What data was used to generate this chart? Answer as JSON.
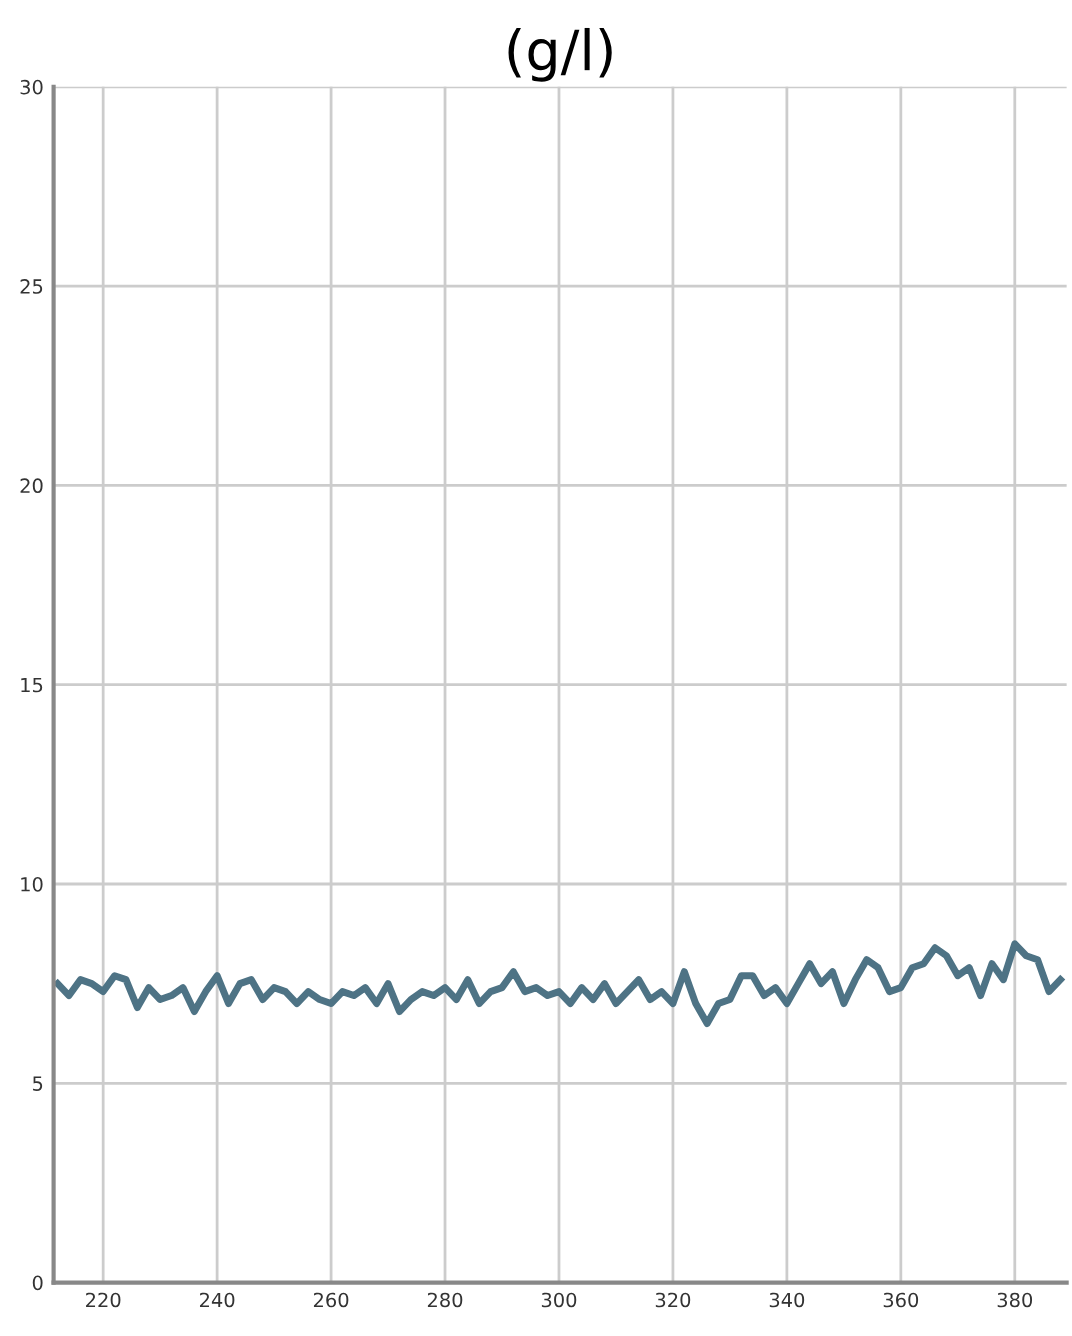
{
  "chart_data": {
    "type": "line",
    "title": "(g/l)",
    "x": [
      212,
      214,
      216,
      218,
      220,
      222,
      224,
      226,
      228,
      230,
      232,
      234,
      236,
      238,
      240,
      242,
      244,
      246,
      248,
      250,
      252,
      254,
      256,
      258,
      260,
      262,
      264,
      266,
      268,
      270,
      272,
      274,
      276,
      278,
      280,
      282,
      284,
      286,
      288,
      290,
      292,
      294,
      296,
      298,
      300,
      302,
      304,
      306,
      308,
      310,
      312,
      314,
      316,
      318,
      320,
      322,
      324,
      326,
      328,
      330,
      332,
      334,
      336,
      338,
      340,
      342,
      344,
      346,
      348,
      350,
      352,
      354,
      356,
      358,
      360,
      362,
      364,
      366,
      368,
      370,
      372,
      374,
      376,
      378,
      380,
      382,
      384,
      386,
      388
    ],
    "series": [
      {
        "color": "#4e7385",
        "values": [
          7.5,
          7.2,
          7.6,
          7.5,
          7.3,
          7.7,
          7.6,
          6.9,
          7.4,
          7.1,
          7.2,
          7.4,
          6.8,
          7.3,
          7.7,
          7.0,
          7.5,
          7.6,
          7.1,
          7.4,
          7.3,
          7.0,
          7.3,
          7.1,
          7.0,
          7.3,
          7.2,
          7.4,
          7.0,
          7.5,
          6.8,
          7.1,
          7.3,
          7.2,
          7.4,
          7.1,
          7.6,
          7.0,
          7.3,
          7.4,
          7.8,
          7.3,
          7.4,
          7.2,
          7.3,
          7.0,
          7.4,
          7.1,
          7.5,
          7.0,
          7.3,
          7.6,
          7.1,
          7.3,
          7.0,
          7.8,
          7.0,
          6.5,
          7.0,
          7.1,
          7.7,
          7.7,
          7.2,
          7.4,
          7.0,
          7.5,
          8.0,
          7.5,
          7.8,
          7.0,
          7.6,
          8.1,
          7.9,
          7.3,
          7.4,
          7.9,
          8.0,
          8.4,
          8.2,
          7.7,
          7.9,
          7.2,
          8.0,
          7.6,
          8.5,
          8.2,
          8.1,
          7.3,
          7.6
        ]
      }
    ],
    "xlim": [
      211.3,
      389.1
    ],
    "ylim": [
      0,
      30
    ],
    "xticks": [
      220,
      240,
      260,
      280,
      300,
      320,
      340,
      360,
      380
    ],
    "yticks": [
      0,
      5,
      10,
      15,
      20,
      25,
      30
    ],
    "grid": true,
    "marker": "none",
    "line_style": "solid"
  }
}
